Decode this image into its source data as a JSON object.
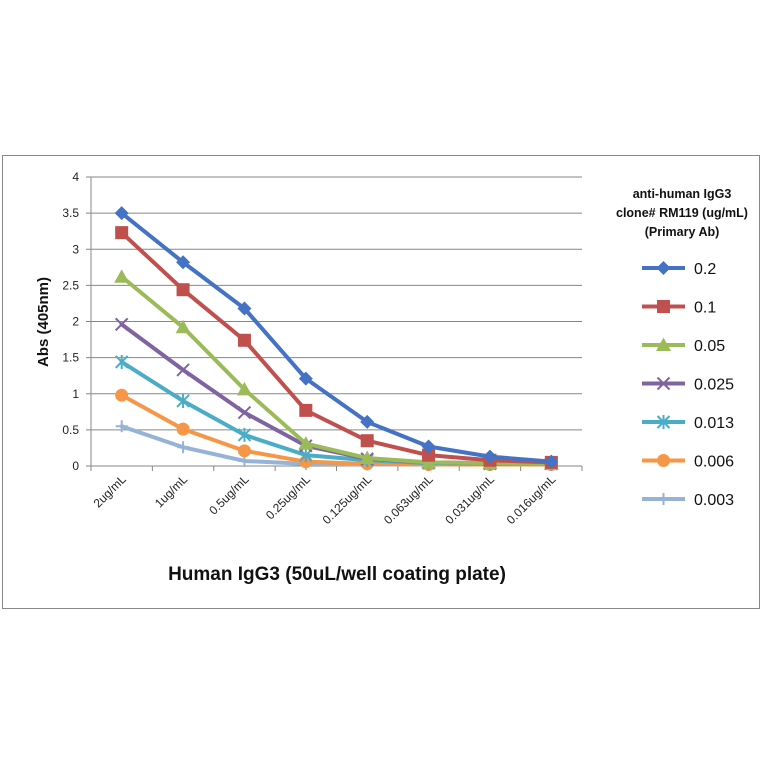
{
  "chart_data": {
    "type": "line",
    "title": "",
    "xlabel": "Human IgG3 (50uL/well coating plate)",
    "ylabel": "Abs (405nm)",
    "categories": [
      "2ug/mL",
      "1ug/mL",
      "0.5ug/mL",
      "0.25ug/mL",
      "0.125ug/mL",
      "0.063ug/mL",
      "0.031ug/mL",
      "0.016ug/mL"
    ],
    "ylim": [
      0,
      4
    ],
    "yticks": [
      "0",
      "0.5",
      "1",
      "1.5",
      "2",
      "2.5",
      "3",
      "3.5",
      "4"
    ],
    "grid": true,
    "legend_position": "right",
    "legend_title": [
      "anti-human IgG3",
      "clone# RM119 (ug/mL)",
      "(Primary Ab)"
    ],
    "series": [
      {
        "name": "0.2",
        "color": "#4472C4",
        "marker": "diamond",
        "values": [
          3.5,
          2.82,
          2.18,
          1.21,
          0.61,
          0.27,
          0.13,
          0.06
        ]
      },
      {
        "name": "0.1",
        "color": "#C0504D",
        "marker": "square",
        "values": [
          3.23,
          2.44,
          1.74,
          0.77,
          0.35,
          0.15,
          0.08,
          0.05
        ]
      },
      {
        "name": "0.05",
        "color": "#9BBB59",
        "marker": "triangle",
        "values": [
          2.62,
          1.92,
          1.06,
          0.31,
          0.11,
          0.05,
          0.04,
          0.03
        ]
      },
      {
        "name": "0.025",
        "color": "#8064A2",
        "marker": "x",
        "values": [
          1.96,
          1.33,
          0.74,
          0.28,
          0.1,
          0.05,
          0.04,
          0.03
        ]
      },
      {
        "name": "0.013",
        "color": "#4BACC6",
        "marker": "star",
        "values": [
          1.44,
          0.9,
          0.43,
          0.15,
          0.08,
          0.04,
          0.03,
          0.03
        ]
      },
      {
        "name": "0.006",
        "color": "#F79646",
        "marker": "circle",
        "values": [
          0.98,
          0.51,
          0.21,
          0.06,
          0.03,
          0.02,
          0.02,
          0.02
        ]
      },
      {
        "name": "0.003",
        "color": "#95B3D7",
        "marker": "plus",
        "values": [
          0.55,
          0.26,
          0.07,
          0.03,
          0.02,
          0.02,
          0.02,
          0.02
        ]
      }
    ]
  }
}
